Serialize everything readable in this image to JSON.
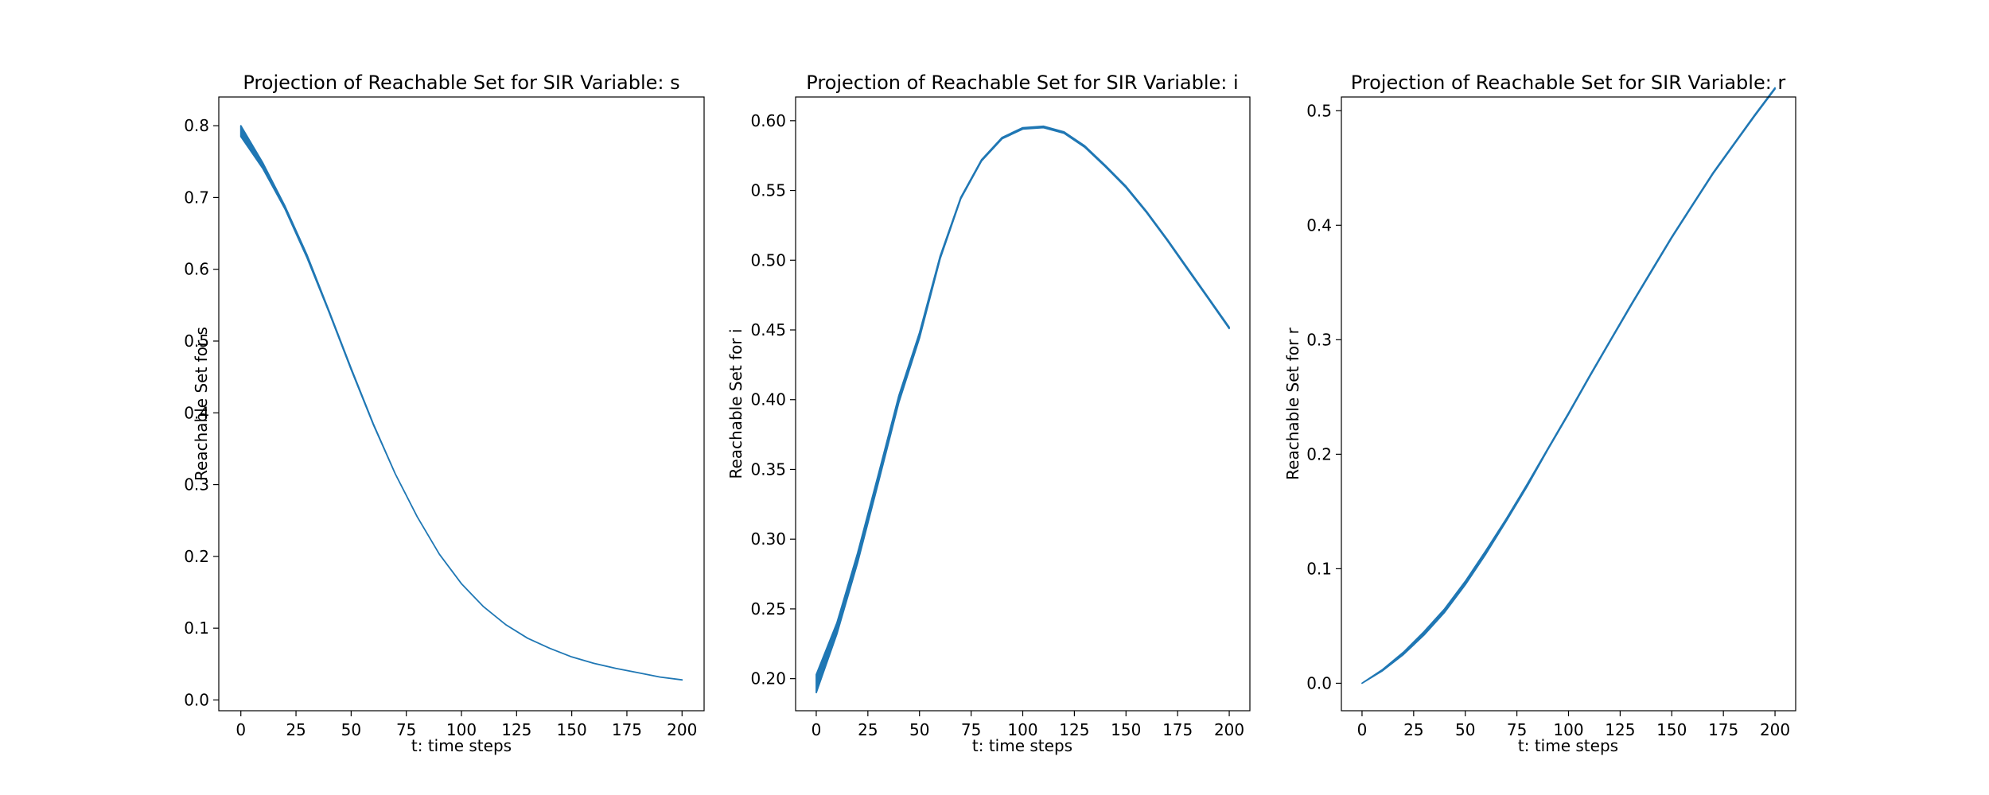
{
  "chart_data": [
    {
      "type": "line",
      "title": "Projection of Reachable Set for SIR Variable: s",
      "xlabel": "t: time steps",
      "ylabel": "Reachable Set for s",
      "xlim": [
        -10,
        210
      ],
      "ylim": [
        -0.015,
        0.84
      ],
      "xticks": [
        0,
        25,
        50,
        75,
        100,
        125,
        150,
        175,
        200
      ],
      "yticks": [
        0.0,
        0.1,
        0.2,
        0.3,
        0.4,
        0.5,
        0.6,
        0.7,
        0.8
      ],
      "ytick_labels": [
        "0.0",
        "0.1",
        "0.2",
        "0.3",
        "0.4",
        "0.5",
        "0.6",
        "0.7",
        "0.8"
      ],
      "grid": false,
      "color": "#1f77b4",
      "x": [
        0,
        10,
        20,
        30,
        40,
        50,
        60,
        70,
        80,
        90,
        100,
        110,
        120,
        130,
        140,
        150,
        160,
        170,
        180,
        190,
        200
      ],
      "upper": [
        0.8,
        0.748,
        0.688,
        0.62,
        0.542,
        0.462,
        0.385,
        0.315,
        0.255,
        0.203,
        0.162,
        0.13,
        0.105,
        0.086,
        0.072,
        0.06,
        0.051,
        0.044,
        0.038,
        0.032,
        0.028
      ],
      "lower": [
        0.785,
        0.74,
        0.684,
        0.616,
        0.54,
        0.46,
        0.384,
        0.315,
        0.255,
        0.203,
        0.162,
        0.13,
        0.105,
        0.086,
        0.072,
        0.06,
        0.051,
        0.044,
        0.038,
        0.032,
        0.028
      ]
    },
    {
      "type": "line",
      "title": "Projection of Reachable Set for SIR Variable: i",
      "xlabel": "t: time steps",
      "ylabel": "Reachable Set for i",
      "xlim": [
        -10,
        210
      ],
      "ylim": [
        0.177,
        0.617
      ],
      "xticks": [
        0,
        25,
        50,
        75,
        100,
        125,
        150,
        175,
        200
      ],
      "yticks": [
        0.2,
        0.25,
        0.3,
        0.35,
        0.4,
        0.45,
        0.5,
        0.55,
        0.6
      ],
      "ytick_labels": [
        "0.20",
        "0.25",
        "0.30",
        "0.35",
        "0.40",
        "0.45",
        "0.50",
        "0.55",
        "0.60"
      ],
      "grid": false,
      "color": "#1f77b4",
      "x": [
        0,
        10,
        20,
        30,
        40,
        50,
        60,
        70,
        80,
        90,
        100,
        110,
        120,
        130,
        140,
        150,
        160,
        170,
        180,
        190,
        200
      ],
      "upper": [
        0.203,
        0.24,
        0.29,
        0.346,
        0.403,
        0.448,
        0.503,
        0.545,
        0.572,
        0.588,
        0.595,
        0.596,
        0.592,
        0.582,
        0.568,
        0.553,
        0.535,
        0.515,
        0.494,
        0.473,
        0.452
      ],
      "lower": [
        0.19,
        0.232,
        0.283,
        0.34,
        0.398,
        0.444,
        0.501,
        0.544,
        0.571,
        0.587,
        0.594,
        0.595,
        0.591,
        0.581,
        0.567,
        0.552,
        0.534,
        0.514,
        0.493,
        0.472,
        0.451
      ]
    },
    {
      "type": "line",
      "title": "Projection of Reachable Set for SIR Variable: r",
      "xlabel": "t: time steps",
      "ylabel": "Reachable Set for r",
      "xlim": [
        -10,
        210
      ],
      "ylim": [
        -0.024,
        0.512
      ],
      "xticks": [
        0,
        25,
        50,
        75,
        100,
        125,
        150,
        175,
        200
      ],
      "yticks": [
        0.0,
        0.1,
        0.2,
        0.3,
        0.4,
        0.5
      ],
      "ytick_labels": [
        "0.0",
        "0.1",
        "0.2",
        "0.3",
        "0.4",
        "0.5"
      ],
      "grid": false,
      "color": "#1f77b4",
      "x": [
        0,
        10,
        20,
        30,
        40,
        50,
        60,
        70,
        80,
        90,
        100,
        110,
        120,
        130,
        140,
        150,
        160,
        170,
        180,
        190,
        200
      ],
      "upper": [
        0.0,
        0.012,
        0.027,
        0.045,
        0.065,
        0.089,
        0.116,
        0.144,
        0.174,
        0.205,
        0.236,
        0.268,
        0.299,
        0.33,
        0.36,
        0.39,
        0.418,
        0.446,
        0.471,
        0.496,
        0.52
      ],
      "lower": [
        0.0,
        0.011,
        0.025,
        0.042,
        0.062,
        0.086,
        0.113,
        0.142,
        0.172,
        0.204,
        0.235,
        0.267,
        0.298,
        0.329,
        0.359,
        0.389,
        0.417,
        0.445,
        0.47,
        0.495,
        0.519
      ]
    }
  ]
}
